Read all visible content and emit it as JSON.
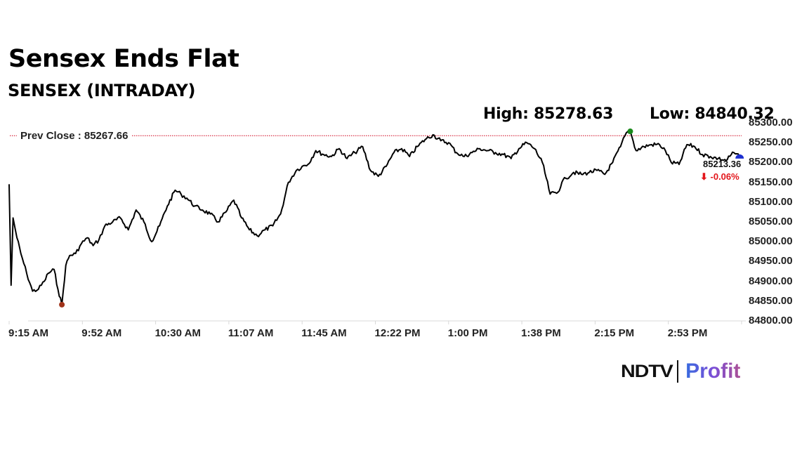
{
  "header": {
    "title": "Sensex Ends Flat",
    "subtitle": "SENSEX (INTRADAY)"
  },
  "stats": {
    "high_label": "High: 85278.63",
    "low_label": "Low: 84840.32",
    "prev_close_label": "Prev Close : 85267.66",
    "last_value": "85213.36",
    "change": "⬇ -0.06%"
  },
  "branding": {
    "logo_left": "NDTV",
    "logo_right": "Profit"
  },
  "colors": {
    "line": "#000000",
    "prev_close_line": "#d0021b",
    "high_marker": "#1a8a1a",
    "low_marker": "#a0331a",
    "end_marker": "#1d2fd0",
    "change_negative": "#e3161b"
  },
  "chart_data": {
    "type": "line",
    "title": "Sensex Ends Flat",
    "subtitle": "SENSEX (INTRADAY)",
    "xlabel": "",
    "ylabel": "",
    "ylim": [
      84800,
      85300
    ],
    "grid": false,
    "legend": "none",
    "x_ticks": [
      "9:15 AM",
      "9:52 AM",
      "10:30 AM",
      "11:07 AM",
      "11:45 AM",
      "12:22 PM",
      "1:00 PM",
      "1:38 PM",
      "2:15 PM",
      "2:53 PM"
    ],
    "y_ticks": [
      "85300.00",
      "85250.00",
      "85200.00",
      "85150.00",
      "85100.00",
      "85050.00",
      "85000.00",
      "84950.00",
      "84900.00",
      "84850.00",
      "84800.00"
    ],
    "prev_close": 85267.66,
    "high": 85278.63,
    "low": 84840.32,
    "last": 85213.36,
    "change_pct": -0.06,
    "series": [
      {
        "name": "SENSEX",
        "x": [
          "9:15",
          "9:16",
          "9:17",
          "9:19",
          "9:21",
          "9:24",
          "9:27",
          "9:30",
          "9:33",
          "9:35",
          "9:38",
          "9:40",
          "9:42",
          "9:44",
          "9:46",
          "9:49",
          "9:52",
          "9:55",
          "9:58",
          "10:01",
          "10:04",
          "10:08",
          "10:12",
          "10:16",
          "10:20",
          "10:24",
          "10:28",
          "10:32",
          "10:36",
          "10:40",
          "10:43",
          "10:46",
          "10:50",
          "10:54",
          "10:58",
          "11:02",
          "11:06",
          "11:10",
          "11:14",
          "11:18",
          "11:22",
          "11:26",
          "11:30",
          "11:34",
          "11:38",
          "11:42",
          "11:45",
          "11:48",
          "11:52",
          "11:56",
          "12:00",
          "12:04",
          "12:08",
          "12:12",
          "12:16",
          "12:20",
          "12:24",
          "12:28",
          "12:32",
          "12:36",
          "12:40",
          "12:44",
          "12:48",
          "12:52",
          "12:56",
          "13:00",
          "13:04",
          "13:08",
          "13:12",
          "13:16",
          "13:20",
          "13:24",
          "13:28",
          "13:32",
          "13:36",
          "13:40",
          "13:44",
          "13:48",
          "13:52",
          "13:56",
          "13:58",
          "14:00",
          "14:04",
          "14:08",
          "14:12",
          "14:16",
          "14:20",
          "14:24",
          "14:28",
          "14:31",
          "14:33",
          "14:36",
          "14:40",
          "14:44",
          "14:48",
          "14:51",
          "14:54",
          "14:58",
          "15:02",
          "15:06",
          "15:10",
          "15:14",
          "15:18",
          "15:22",
          "15:26",
          "15:29"
        ],
        "values": [
          85145,
          84890,
          85060,
          85010,
          84970,
          84920,
          84875,
          84880,
          84900,
          84920,
          84930,
          84880,
          84841,
          84940,
          84965,
          84970,
          84995,
          85010,
          84990,
          85005,
          85040,
          85050,
          85060,
          85030,
          85080,
          85050,
          85000,
          85040,
          85090,
          85130,
          85120,
          85110,
          85090,
          85080,
          85070,
          85050,
          85075,
          85105,
          85060,
          85030,
          85015,
          85030,
          85040,
          85070,
          85150,
          85180,
          85190,
          85195,
          85230,
          85220,
          85215,
          85235,
          85210,
          85225,
          85240,
          85180,
          85165,
          85190,
          85225,
          85235,
          85215,
          85240,
          85258,
          85270,
          85255,
          85250,
          85225,
          85215,
          85225,
          85235,
          85230,
          85225,
          85220,
          85210,
          85235,
          85250,
          85235,
          85200,
          85120,
          85125,
          85150,
          85160,
          85175,
          85170,
          85175,
          85180,
          85170,
          85200,
          85240,
          85275,
          85278.63,
          85230,
          85240,
          85245,
          85245,
          85230,
          85200,
          85195,
          85245,
          85240,
          85220,
          85215,
          85210,
          85205,
          85225,
          85213.36
        ]
      }
    ]
  }
}
